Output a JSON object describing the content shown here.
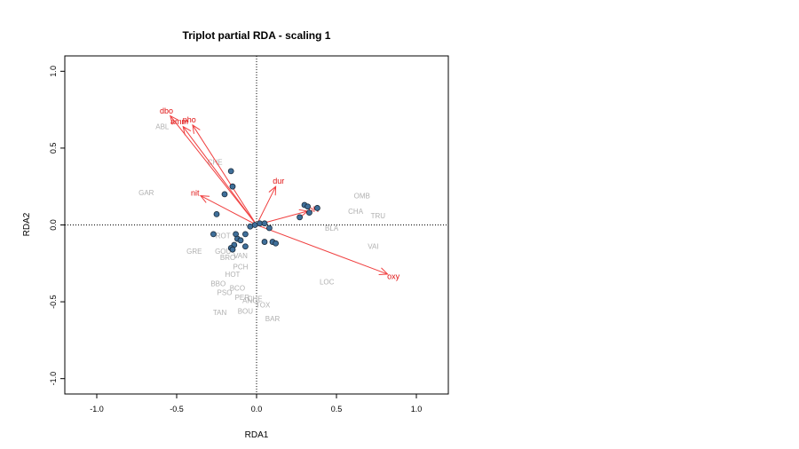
{
  "chart_data": {
    "type": "scatter",
    "title": "Triplot partial RDA - scaling 1",
    "xlabel": "RDA1",
    "ylabel": "RDA2",
    "xlim": [
      -1.2,
      1.2
    ],
    "ylim": [
      -1.1,
      1.1
    ],
    "x_ticks": [
      "-1.0",
      "-0.5",
      "0.0",
      "0.5",
      "1.0"
    ],
    "y_ticks": [
      "-1.0",
      "-0.5",
      "0.0",
      "0.5",
      "1.0"
    ],
    "x_tick_values": [
      -1.0,
      -0.5,
      0.0,
      0.5,
      1.0
    ],
    "y_tick_values": [
      -1.0,
      -0.5,
      0.0,
      0.5,
      1.0
    ],
    "reference_lines": "dotted lines at x=0 and y=0",
    "colors": {
      "sites_fill": "#3f6f9a",
      "sites_stroke": "#1a2a3a",
      "species_text": "#b0b0b0",
      "arrows": "#f04040",
      "env_labels": "#e01010"
    },
    "sites": [
      {
        "x": -0.16,
        "y": 0.35
      },
      {
        "x": -0.15,
        "y": 0.25
      },
      {
        "x": -0.2,
        "y": 0.2
      },
      {
        "x": -0.25,
        "y": 0.07
      },
      {
        "x": -0.27,
        "y": -0.06
      },
      {
        "x": -0.13,
        "y": -0.06
      },
      {
        "x": -0.07,
        "y": -0.06
      },
      {
        "x": -0.12,
        "y": -0.09
      },
      {
        "x": -0.1,
        "y": -0.1
      },
      {
        "x": -0.14,
        "y": -0.13
      },
      {
        "x": -0.16,
        "y": -0.15
      },
      {
        "x": -0.15,
        "y": -0.16
      },
      {
        "x": -0.07,
        "y": -0.14
      },
      {
        "x": -0.04,
        "y": -0.01
      },
      {
        "x": -0.01,
        "y": 0.0
      },
      {
        "x": 0.02,
        "y": 0.01
      },
      {
        "x": 0.05,
        "y": 0.01
      },
      {
        "x": 0.08,
        "y": -0.02
      },
      {
        "x": 0.05,
        "y": -0.11
      },
      {
        "x": 0.1,
        "y": -0.11
      },
      {
        "x": 0.12,
        "y": -0.12
      },
      {
        "x": 0.27,
        "y": 0.05
      },
      {
        "x": 0.3,
        "y": 0.13
      },
      {
        "x": 0.32,
        "y": 0.12
      },
      {
        "x": 0.33,
        "y": 0.08
      },
      {
        "x": 0.38,
        "y": 0.11
      }
    ],
    "species": [
      {
        "label": "ABL",
        "x": -0.59,
        "y": 0.64
      },
      {
        "label": "GAR",
        "x": -0.69,
        "y": 0.21
      },
      {
        "label": "OMB",
        "x": 0.66,
        "y": 0.19
      },
      {
        "label": "CHA",
        "x": 0.62,
        "y": 0.09
      },
      {
        "label": "TRU",
        "x": 0.76,
        "y": 0.06
      },
      {
        "label": "BLA",
        "x": 0.47,
        "y": -0.02
      },
      {
        "label": "VAI",
        "x": 0.73,
        "y": -0.14
      },
      {
        "label": "LOC",
        "x": 0.44,
        "y": -0.37
      },
      {
        "label": "GRE",
        "x": -0.39,
        "y": -0.17
      },
      {
        "label": "ROT",
        "x": -0.21,
        "y": -0.07
      },
      {
        "label": "GOU",
        "x": -0.21,
        "y": -0.17
      },
      {
        "label": "BRO",
        "x": -0.18,
        "y": -0.21
      },
      {
        "label": "VAN",
        "x": -0.1,
        "y": -0.2
      },
      {
        "label": "PCH",
        "x": -0.1,
        "y": -0.27
      },
      {
        "label": "HOT",
        "x": -0.15,
        "y": -0.32
      },
      {
        "label": "BBO",
        "x": -0.24,
        "y": -0.38
      },
      {
        "label": "BCO",
        "x": -0.12,
        "y": -0.41
      },
      {
        "label": "PSO",
        "x": -0.2,
        "y": -0.44
      },
      {
        "label": "PER",
        "x": -0.09,
        "y": -0.47
      },
      {
        "label": "ANG",
        "x": -0.04,
        "y": -0.49
      },
      {
        "label": "CHE",
        "x": -0.01,
        "y": -0.48
      },
      {
        "label": "TOX",
        "x": 0.04,
        "y": -0.52
      },
      {
        "label": "BOU",
        "x": -0.07,
        "y": -0.56
      },
      {
        "label": "TAN",
        "x": -0.23,
        "y": -0.57
      },
      {
        "label": "BAR",
        "x": 0.1,
        "y": -0.61
      },
      {
        "label": "CHE",
        "x": -0.26,
        "y": 0.41
      }
    ],
    "env_arrows": [
      {
        "label": "dbo",
        "x": -0.54,
        "y": 0.71
      },
      {
        "label": "amm",
        "x": -0.46,
        "y": 0.64
      },
      {
        "label": "pho",
        "x": -0.4,
        "y": 0.65
      },
      {
        "label": "nit",
        "x": -0.35,
        "y": 0.19
      },
      {
        "label": "dur",
        "x": 0.12,
        "y": 0.25
      },
      {
        "label": "pH",
        "x": 0.32,
        "y": 0.09
      },
      {
        "label": "oxy",
        "x": 0.82,
        "y": -0.32
      }
    ]
  }
}
